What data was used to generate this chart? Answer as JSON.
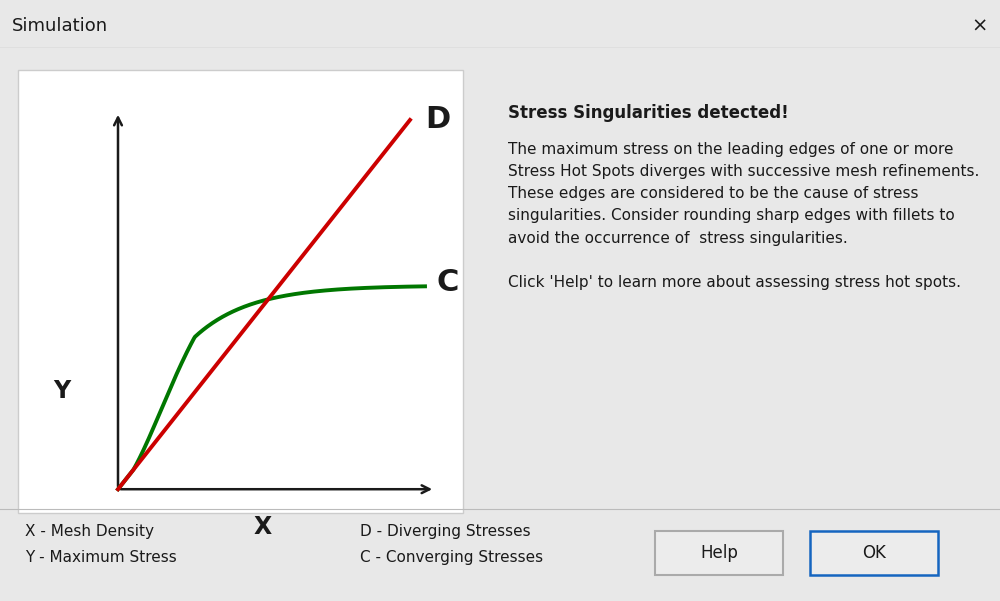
{
  "title": "Simulation",
  "close_x": "×",
  "background_color": "#e8e8e8",
  "plot_bg": "#ffffff",
  "stress_title": "Stress Singularities detected!",
  "stress_body": "The maximum stress on the leading edges of one or more\nStress Hot Spots diverges with successive mesh refinements.\nThese edges are considered to be the cause of stress\nsingularities. Consider rounding sharp edges with fillets to\navoid the occurrence of  stress singularities.\n\nClick 'Help' to learn more about assessing stress hot spots.",
  "legend_x_label": "X - Mesh Density",
  "legend_y_label": "Y - Maximum Stress",
  "legend_d_label": "D - Diverging Stresses",
  "legend_c_label": "C - Converging Stresses",
  "axis_x_label": "X",
  "axis_y_label": "Y",
  "curve_d_label": "D",
  "curve_c_label": "C",
  "red_color": "#cc0000",
  "green_color": "#007700",
  "dark_color": "#1a1a1a",
  "button_border_help": "#aaaaaa",
  "button_border_ok": "#1565c0"
}
